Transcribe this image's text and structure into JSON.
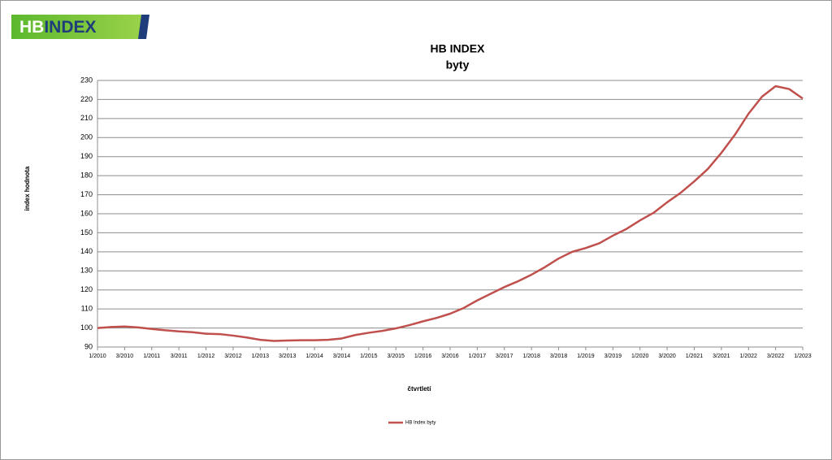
{
  "logo": {
    "parts": [
      "HB",
      "INDEX"
    ]
  },
  "chart_data": {
    "type": "line",
    "title": "HB INDEX",
    "subtitle": "byty",
    "x_label": "čtvrtletí",
    "y_label": "index hodnota",
    "categories": [
      "1/2010",
      null,
      "3/2010",
      null,
      "1/2011",
      null,
      "3/2011",
      null,
      "1/2012",
      null,
      "3/2012",
      null,
      "1/2013",
      null,
      "3/2013",
      null,
      "1/2014",
      null,
      "3/2014",
      null,
      "1/2015",
      null,
      "3/2015",
      null,
      "1/2016",
      null,
      "3/2016",
      null,
      "1/2017",
      null,
      "3/2017",
      null,
      "1/2018",
      null,
      "3/2018",
      null,
      "1/2019",
      null,
      "3/2019",
      null,
      "1/2020",
      null,
      "3/2020",
      null,
      "1/2021",
      null,
      "3/2021",
      null,
      "1/2022",
      null,
      "3/2022",
      null,
      "1/2023"
    ],
    "series": [
      {
        "name": "HB Index byty",
        "color": "#c0504d",
        "values": [
          100,
          100.5,
          100.8,
          100.3,
          99.5,
          98.8,
          98.2,
          97.8,
          97,
          96.8,
          96,
          95,
          93.8,
          93.2,
          93.4,
          93.6,
          93.6,
          93.8,
          94.5,
          96.3,
          97.5,
          98.5,
          99.8,
          101.5,
          103.5,
          105.3,
          107.5,
          110.5,
          114.5,
          118,
          121.5,
          124.5,
          128,
          132,
          136.5,
          140,
          142,
          144.5,
          148.5,
          152,
          156.5,
          160.5,
          166,
          171,
          177,
          183.5,
          192,
          201.5,
          212.5,
          221.5,
          227,
          225.5,
          220.5
        ]
      }
    ],
    "ylim": [
      90,
      230
    ],
    "yticks": [
      90,
      100,
      110,
      120,
      130,
      140,
      150,
      160,
      170,
      180,
      190,
      200,
      210,
      220,
      230
    ],
    "grid": true,
    "legend": "bottom"
  }
}
